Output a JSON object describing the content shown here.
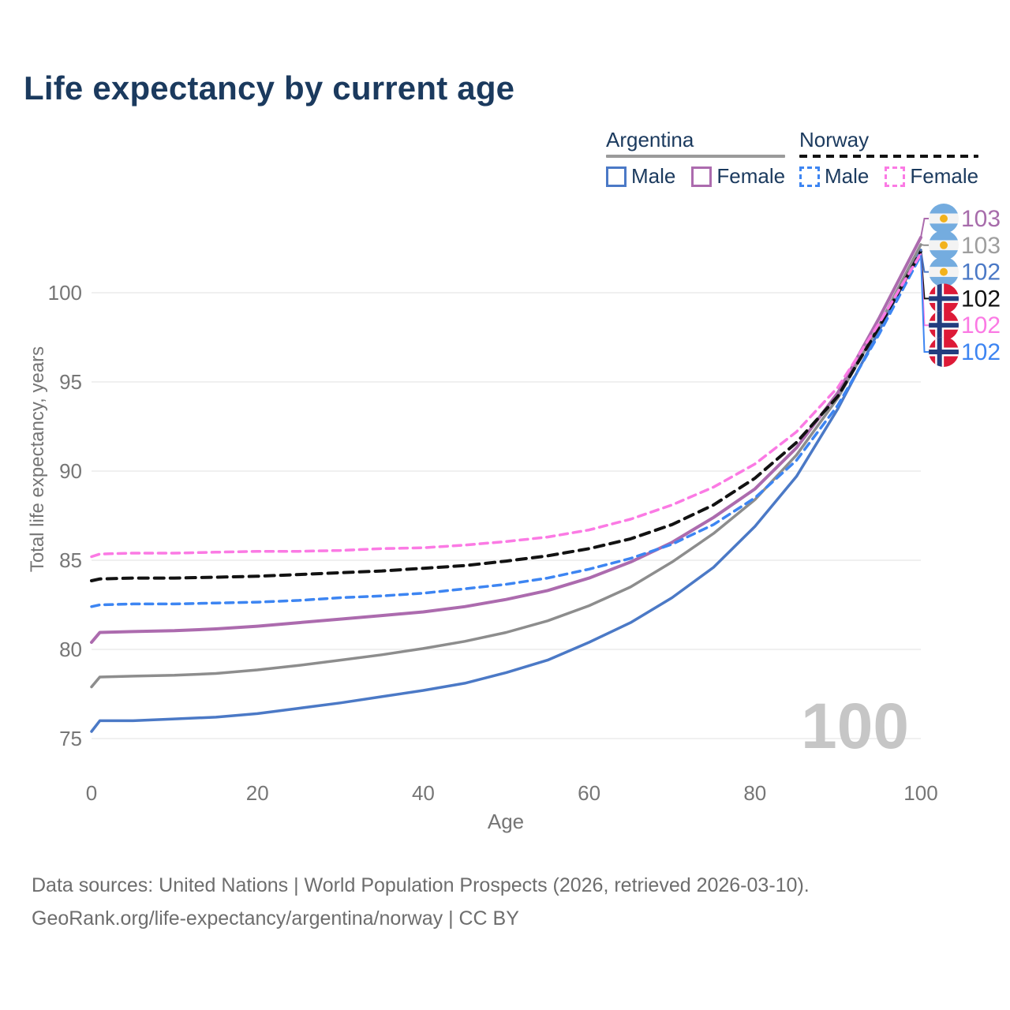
{
  "title": "Life expectancy by current age",
  "legend": {
    "groups": [
      {
        "label": "Argentina",
        "underline_style": "solid",
        "underline_color": "#9a9a9a",
        "items": [
          {
            "label": "Male",
            "color": "#4b79c6",
            "dashed": false
          },
          {
            "label": "Female",
            "color": "#ac6bae",
            "dashed": false
          }
        ]
      },
      {
        "label": "Norway",
        "underline_style": "dashed",
        "underline_color": "#121212",
        "items": [
          {
            "label": "Male",
            "color": "#3d85f2",
            "dashed": true
          },
          {
            "label": "Female",
            "color": "#fb7ae4",
            "dashed": true
          }
        ]
      }
    ]
  },
  "chart_data": {
    "type": "line",
    "title": "Life expectancy by current age",
    "xlabel": "Age",
    "ylabel": "Total life expectancy, years",
    "x_ticks": [
      0,
      20,
      40,
      60,
      80,
      100
    ],
    "y_ticks": [
      75,
      80,
      85,
      90,
      95,
      100
    ],
    "xlim": [
      0,
      100
    ],
    "ylim": [
      74,
      104
    ],
    "grid": "horizontal",
    "ages": [
      0,
      1,
      5,
      10,
      15,
      20,
      25,
      30,
      35,
      40,
      45,
      50,
      55,
      60,
      65,
      70,
      75,
      80,
      85,
      90,
      95,
      100
    ],
    "series": [
      {
        "id": "ar_male",
        "name": "Argentina Male",
        "color": "#4b79c6",
        "dash": null,
        "width": 3.5,
        "values": [
          75.4,
          76.0,
          76.0,
          76.1,
          76.2,
          76.4,
          76.7,
          77.0,
          77.35,
          77.7,
          78.1,
          78.7,
          79.4,
          80.4,
          81.5,
          82.9,
          84.6,
          86.9,
          89.7,
          93.5,
          97.9,
          102.4
        ]
      },
      {
        "id": "ar_total",
        "name": "Argentina Total",
        "color": "#8d8d8d",
        "dash": null,
        "width": 3.5,
        "values": [
          77.9,
          78.45,
          78.5,
          78.55,
          78.65,
          78.85,
          79.1,
          79.4,
          79.7,
          80.05,
          80.45,
          80.95,
          81.6,
          82.45,
          83.5,
          84.9,
          86.5,
          88.4,
          90.9,
          94.1,
          98.2,
          102.7
        ]
      },
      {
        "id": "ar_female",
        "name": "Argentina Female",
        "color": "#ac6bae",
        "dash": null,
        "width": 4,
        "values": [
          80.4,
          80.95,
          81.0,
          81.05,
          81.15,
          81.3,
          81.5,
          81.7,
          81.9,
          82.1,
          82.4,
          82.8,
          83.3,
          84.0,
          84.9,
          86.0,
          87.4,
          89.0,
          91.3,
          94.4,
          98.6,
          103.1
        ]
      },
      {
        "id": "no_male",
        "name": "Norway Male",
        "color": "#3d85f2",
        "dash": "10 7",
        "width": 3.5,
        "values": [
          82.4,
          82.5,
          82.55,
          82.55,
          82.6,
          82.65,
          82.75,
          82.9,
          83.0,
          83.15,
          83.4,
          83.65,
          84.0,
          84.5,
          85.1,
          85.9,
          87.0,
          88.5,
          90.6,
          93.7,
          97.7,
          102.1
        ]
      },
      {
        "id": "no_total",
        "name": "Norway Total",
        "color": "#121212",
        "dash": "12 8",
        "width": 4,
        "values": [
          83.85,
          83.95,
          84.0,
          84.0,
          84.05,
          84.1,
          84.2,
          84.3,
          84.4,
          84.55,
          84.7,
          84.95,
          85.25,
          85.65,
          86.2,
          87.0,
          88.1,
          89.6,
          91.6,
          94.2,
          98.1,
          102.3
        ]
      },
      {
        "id": "no_female",
        "name": "Norway Female",
        "color": "#fb7ae4",
        "dash": "10 7",
        "width": 3.5,
        "values": [
          85.2,
          85.35,
          85.4,
          85.4,
          85.45,
          85.5,
          85.5,
          85.55,
          85.65,
          85.7,
          85.85,
          86.05,
          86.3,
          86.7,
          87.3,
          88.1,
          89.1,
          90.4,
          92.2,
          94.7,
          98.3,
          102.2
        ]
      }
    ],
    "end_labels": [
      {
        "series": "ar_female",
        "flag": "argentina",
        "text": "103",
        "text_color": "#a76cab"
      },
      {
        "series": "ar_total",
        "flag": "argentina",
        "text": "103",
        "text_color": "#9e9e9e"
      },
      {
        "series": "ar_male",
        "flag": "argentina",
        "text": "102",
        "text_color": "#4b79c6"
      },
      {
        "series": "no_total",
        "flag": "norway",
        "text": "102",
        "text_color": "#121212"
      },
      {
        "series": "no_female",
        "flag": "norway",
        "text": "102",
        "text_color": "#fb7ae4"
      },
      {
        "series": "no_male",
        "flag": "norway",
        "text": "102",
        "text_color": "#3d85f2"
      }
    ]
  },
  "watermark": "100",
  "flags": {
    "argentina": {
      "stripe": "#74acdf",
      "white": "#f3f3f3",
      "sun": "#f2b21d"
    },
    "norway": {
      "red": "#dd1a37",
      "navy": "#223d7e",
      "white": "#ffffff"
    }
  },
  "footer": {
    "line1": "Data sources: United Nations | World Population Prospects (2026, retrieved 2026-03-10).",
    "line2": "GeoRank.org/life-expectancy/argentina/norway | CC BY"
  }
}
